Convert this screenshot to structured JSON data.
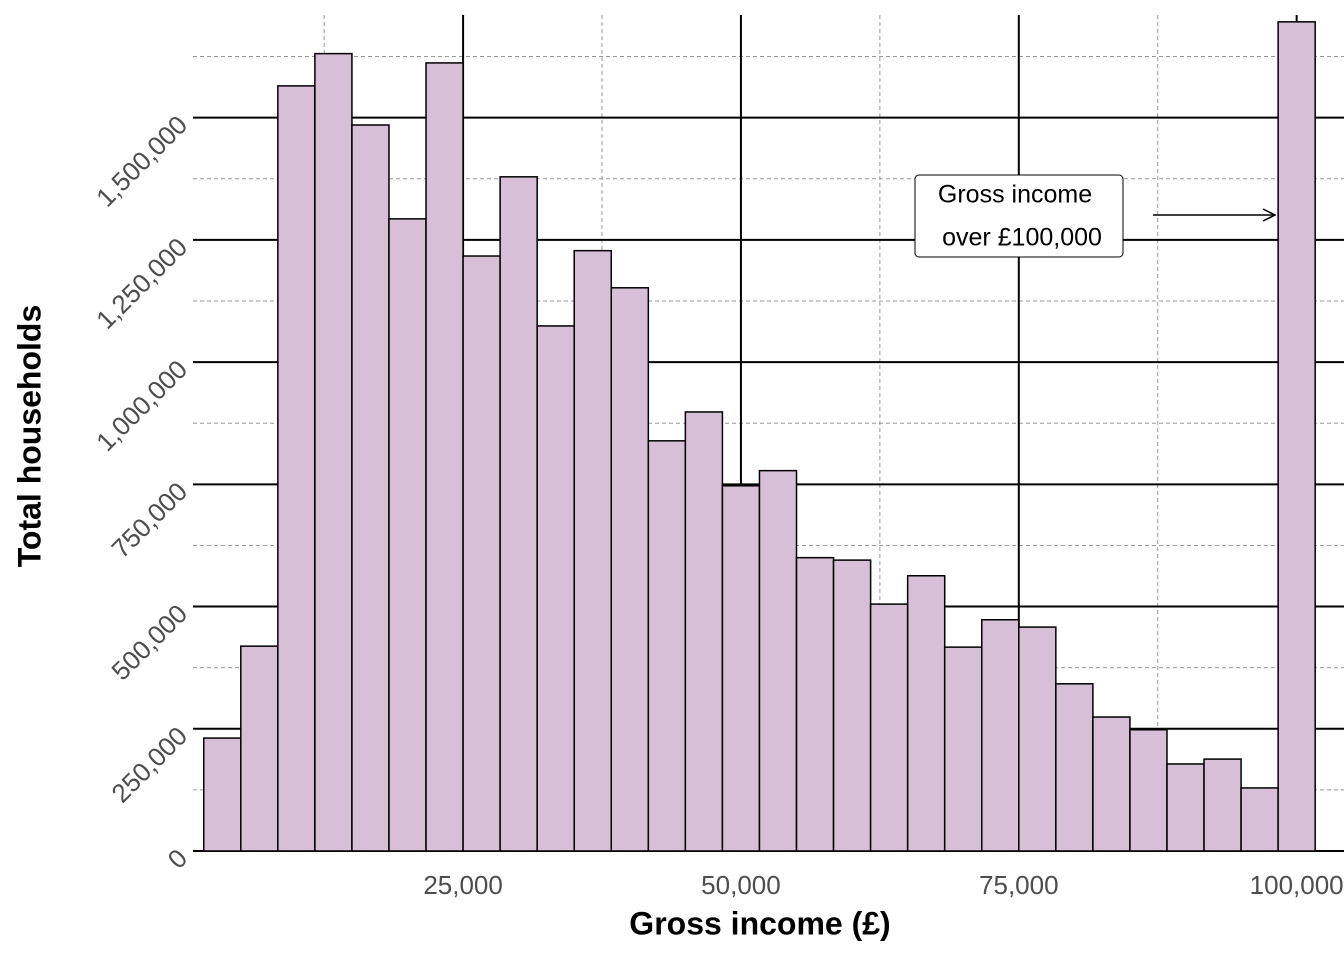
{
  "chart_data": {
    "type": "histogram",
    "xlabel": "Gross income (£)",
    "ylabel": "Total households",
    "bins": [
      1667,
      5000,
      8333,
      11667,
      15000,
      18333,
      21667,
      25000,
      28333,
      31667,
      35000,
      38333,
      41667,
      45000,
      48333,
      51667,
      55000,
      58333,
      61667,
      65000,
      68333,
      71667,
      75000,
      78333,
      81667,
      85000,
      88333,
      91667,
      95000,
      98333,
      101667
    ],
    "values": [
      231000,
      419000,
      1565000,
      1631000,
      1485000,
      1293000,
      1612000,
      1217000,
      1379000,
      1074000,
      1228000,
      1152000,
      839000,
      898000,
      747000,
      778000,
      600000,
      595000,
      505000,
      563000,
      417000,
      473000,
      458000,
      342000,
      274000,
      248000,
      178000,
      188000,
      129000,
      1696000
    ],
    "color": "#d8bfd8",
    "edgecolor": "#000000",
    "xlim": [
      700,
      103000
    ],
    "ylim": [
      0,
      1710000
    ],
    "xticks": [
      {
        "value": 25000,
        "label": "25,000"
      },
      {
        "value": 50000,
        "label": "50,000"
      },
      {
        "value": 75000,
        "label": "75,000"
      },
      {
        "value": 100000,
        "label": "100,000"
      }
    ],
    "yticks": [
      0,
      {
        "value": 250000,
        "label": "250,000"
      },
      {
        "value": 500000,
        "label": "500,000"
      },
      {
        "value": 750000,
        "label": "750,000"
      },
      {
        "value": 1000000,
        "label": "1,000,000"
      },
      {
        "value": 1250000,
        "label": "1,250,000"
      },
      {
        "value": 1500000,
        "label": "1,500,000"
      }
    ],
    "xminorticks": [
      12500,
      37500,
      62500,
      87500
    ],
    "yminorticks": [
      125000,
      375000,
      625000,
      875000,
      1125000,
      1375000,
      1625000
    ],
    "grid": true,
    "annotation": {
      "lines": [
        "Gross income",
        "over £100,000"
      ]
    }
  }
}
